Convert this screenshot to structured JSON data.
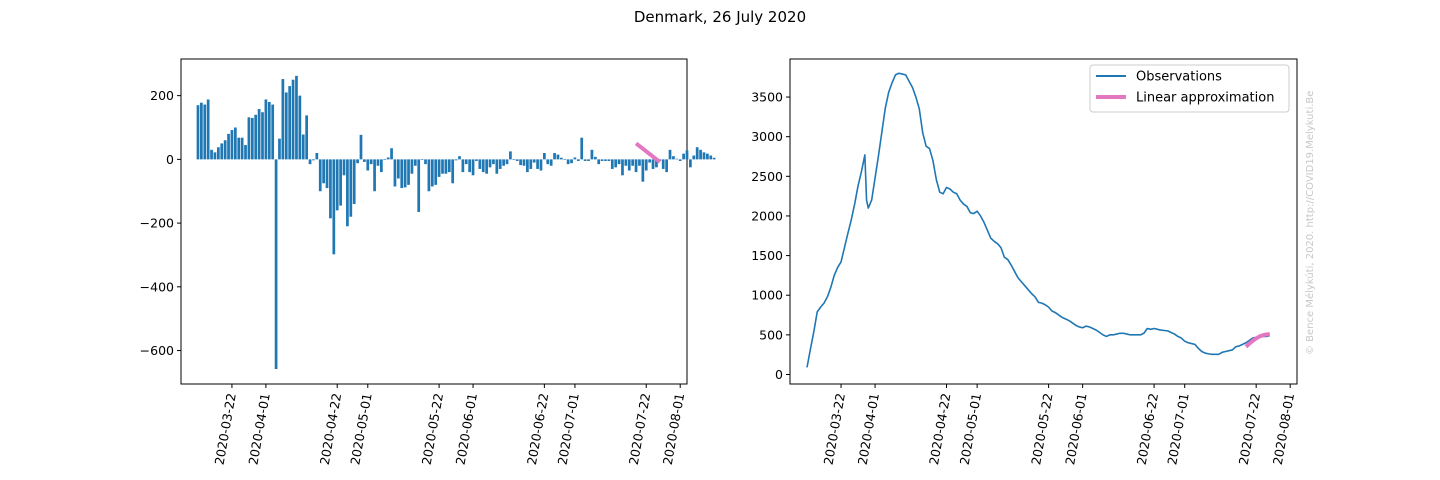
{
  "figure": {
    "title": "Denmark, 26 July 2020",
    "watermark": "© Bence Mélykúti, 2020. http://COVID19.Melykuti.Be"
  },
  "colors": {
    "observations": "#1f77b4",
    "approximation": "#e377c2"
  },
  "chart_data": [
    {
      "type": "bar",
      "name": "left",
      "title": "",
      "xlabel": "",
      "ylabel": "",
      "x_start": "2020-03-12",
      "x_end": "2020-07-26",
      "xlim": [
        "2020-03-07",
        "2020-08-03"
      ],
      "ylim": [
        -705,
        315
      ],
      "yticks": [
        200,
        0,
        -200,
        -400,
        -600
      ],
      "xticks": [
        "2020-03-22",
        "2020-04-01",
        "2020-04-22",
        "2020-05-01",
        "2020-05-22",
        "2020-06-01",
        "2020-06-22",
        "2020-07-01",
        "2020-07-22",
        "2020-08-01"
      ],
      "values": [
        170,
        178,
        172,
        188,
        30,
        22,
        38,
        50,
        60,
        80,
        92,
        100,
        68,
        68,
        45,
        132,
        130,
        140,
        158,
        148,
        188,
        180,
        172,
        -658,
        65,
        252,
        210,
        230,
        250,
        262,
        200,
        78,
        138,
        -15,
        -3,
        20,
        -100,
        -75,
        -90,
        -185,
        -298,
        -160,
        -145,
        -50,
        -210,
        -180,
        -140,
        -12,
        77,
        -8,
        -35,
        -15,
        -100,
        -20,
        -40,
        -2,
        6,
        35,
        -85,
        -60,
        -90,
        -88,
        -80,
        -45,
        -20,
        -165,
        -2,
        -15,
        -100,
        -85,
        -80,
        -55,
        -45,
        -45,
        -40,
        -75,
        -3,
        10,
        -40,
        -15,
        -40,
        -50,
        -5,
        -30,
        -40,
        -45,
        -25,
        -15,
        -45,
        -30,
        -20,
        -15,
        25,
        -2,
        -5,
        -18,
        -20,
        -40,
        -30,
        -10,
        -30,
        -35,
        20,
        -15,
        -20,
        20,
        15,
        5,
        -2,
        -15,
        -12,
        6,
        -5,
        68,
        -5,
        -5,
        30,
        8,
        -15,
        -5,
        -5,
        -5,
        -30,
        -25,
        -15,
        -50,
        -20,
        -35,
        -20,
        -40,
        -20,
        -70,
        -35,
        -10,
        -30,
        -25,
        -5,
        -30,
        -40,
        30,
        10,
        2,
        -5,
        18,
        28,
        -25,
        12,
        38,
        30,
        22,
        18,
        12,
        5
      ],
      "approximation": [
        {
          "x": "2020-07-19",
          "y": 50
        },
        {
          "x": "2020-07-26",
          "y": -8
        }
      ]
    },
    {
      "type": "line",
      "name": "right",
      "title": "",
      "xlabel": "",
      "ylabel": "",
      "x_start": "2020-03-12",
      "x_end": "2020-07-26",
      "xlim": [
        "2020-03-07",
        "2020-08-03"
      ],
      "ylim": [
        -120,
        3980
      ],
      "yticks": [
        0,
        500,
        1000,
        1500,
        2000,
        2500,
        3000,
        3500
      ],
      "xticks": [
        "2020-03-22",
        "2020-04-01",
        "2020-04-22",
        "2020-05-01",
        "2020-05-22",
        "2020-06-01",
        "2020-06-22",
        "2020-07-01",
        "2020-07-22",
        "2020-08-01"
      ],
      "legend": {
        "position": "top-right",
        "entries": [
          "Observations",
          "Linear approximation"
        ]
      },
      "observations": [
        [
          0,
          90
        ],
        [
          1,
          320
        ],
        [
          2,
          540
        ],
        [
          3,
          790
        ],
        [
          4,
          850
        ],
        [
          5,
          900
        ],
        [
          6,
          980
        ],
        [
          7,
          1100
        ],
        [
          8,
          1250
        ],
        [
          9,
          1350
        ],
        [
          10,
          1420
        ],
        [
          11,
          1600
        ],
        [
          12,
          1780
        ],
        [
          13,
          1950
        ],
        [
          14,
          2150
        ],
        [
          15,
          2380
        ],
        [
          16,
          2560
        ],
        [
          17,
          2770
        ],
        [
          17.5,
          2200
        ],
        [
          18,
          2100
        ],
        [
          19,
          2200
        ],
        [
          20,
          2480
        ],
        [
          21,
          2760
        ],
        [
          22,
          3060
        ],
        [
          23,
          3360
        ],
        [
          24,
          3560
        ],
        [
          25,
          3680
        ],
        [
          26,
          3780
        ],
        [
          27,
          3800
        ],
        [
          28,
          3790
        ],
        [
          29,
          3780
        ],
        [
          30,
          3700
        ],
        [
          31,
          3620
        ],
        [
          32,
          3500
        ],
        [
          33,
          3350
        ],
        [
          34,
          3050
        ],
        [
          35,
          2880
        ],
        [
          36,
          2850
        ],
        [
          37,
          2700
        ],
        [
          38,
          2460
        ],
        [
          39,
          2300
        ],
        [
          40,
          2280
        ],
        [
          41,
          2360
        ],
        [
          42,
          2340
        ],
        [
          43,
          2300
        ],
        [
          44,
          2280
        ],
        [
          45,
          2200
        ],
        [
          46,
          2150
        ],
        [
          47,
          2120
        ],
        [
          48,
          2040
        ],
        [
          49,
          2030
        ],
        [
          50,
          2060
        ],
        [
          51,
          2000
        ],
        [
          52,
          1920
        ],
        [
          53,
          1820
        ],
        [
          54,
          1720
        ],
        [
          55,
          1680
        ],
        [
          56,
          1650
        ],
        [
          57,
          1600
        ],
        [
          58,
          1480
        ],
        [
          59,
          1450
        ],
        [
          60,
          1380
        ],
        [
          61,
          1300
        ],
        [
          62,
          1220
        ],
        [
          63,
          1170
        ],
        [
          64,
          1120
        ],
        [
          65,
          1070
        ],
        [
          66,
          1020
        ],
        [
          67,
          980
        ],
        [
          68,
          910
        ],
        [
          69,
          900
        ],
        [
          70,
          880
        ],
        [
          71,
          850
        ],
        [
          72,
          800
        ],
        [
          73,
          780
        ],
        [
          74,
          750
        ],
        [
          75,
          720
        ],
        [
          76,
          700
        ],
        [
          77,
          680
        ],
        [
          78,
          650
        ],
        [
          79,
          620
        ],
        [
          80,
          600
        ],
        [
          81,
          590
        ],
        [
          82,
          610
        ],
        [
          83,
          600
        ],
        [
          84,
          580
        ],
        [
          85,
          560
        ],
        [
          86,
          530
        ],
        [
          87,
          500
        ],
        [
          88,
          480
        ],
        [
          89,
          500
        ],
        [
          90,
          500
        ],
        [
          91,
          510
        ],
        [
          92,
          520
        ],
        [
          93,
          520
        ],
        [
          94,
          510
        ],
        [
          95,
          500
        ],
        [
          96,
          500
        ],
        [
          97,
          500
        ],
        [
          98,
          500
        ],
        [
          99,
          520
        ],
        [
          100,
          580
        ],
        [
          101,
          570
        ],
        [
          102,
          580
        ],
        [
          103,
          570
        ],
        [
          104,
          560
        ],
        [
          105,
          555
        ],
        [
          106,
          550
        ],
        [
          107,
          530
        ],
        [
          108,
          510
        ],
        [
          109,
          480
        ],
        [
          110,
          460
        ],
        [
          111,
          420
        ],
        [
          112,
          400
        ],
        [
          113,
          390
        ],
        [
          114,
          380
        ],
        [
          115,
          330
        ],
        [
          116,
          290
        ],
        [
          117,
          270
        ],
        [
          118,
          260
        ],
        [
          119,
          255
        ],
        [
          120,
          255
        ],
        [
          121,
          255
        ],
        [
          122,
          280
        ],
        [
          123,
          290
        ],
        [
          124,
          300
        ],
        [
          125,
          310
        ],
        [
          126,
          350
        ],
        [
          127,
          360
        ],
        [
          128,
          380
        ],
        [
          129,
          400
        ],
        [
          130,
          430
        ],
        [
          131,
          460
        ],
        [
          132,
          470
        ],
        [
          133,
          480
        ],
        [
          134,
          480
        ],
        [
          135,
          480
        ],
        [
          136,
          490
        ]
      ],
      "approximation": [
        {
          "x": "2020-07-19",
          "y": 350
        },
        {
          "x": "2020-07-20",
          "y": 390
        },
        {
          "x": "2020-07-21",
          "y": 425
        },
        {
          "x": "2020-07-22",
          "y": 455
        },
        {
          "x": "2020-07-23",
          "y": 480
        },
        {
          "x": "2020-07-24",
          "y": 495
        },
        {
          "x": "2020-07-25",
          "y": 505
        },
        {
          "x": "2020-07-26",
          "y": 510
        }
      ]
    }
  ]
}
